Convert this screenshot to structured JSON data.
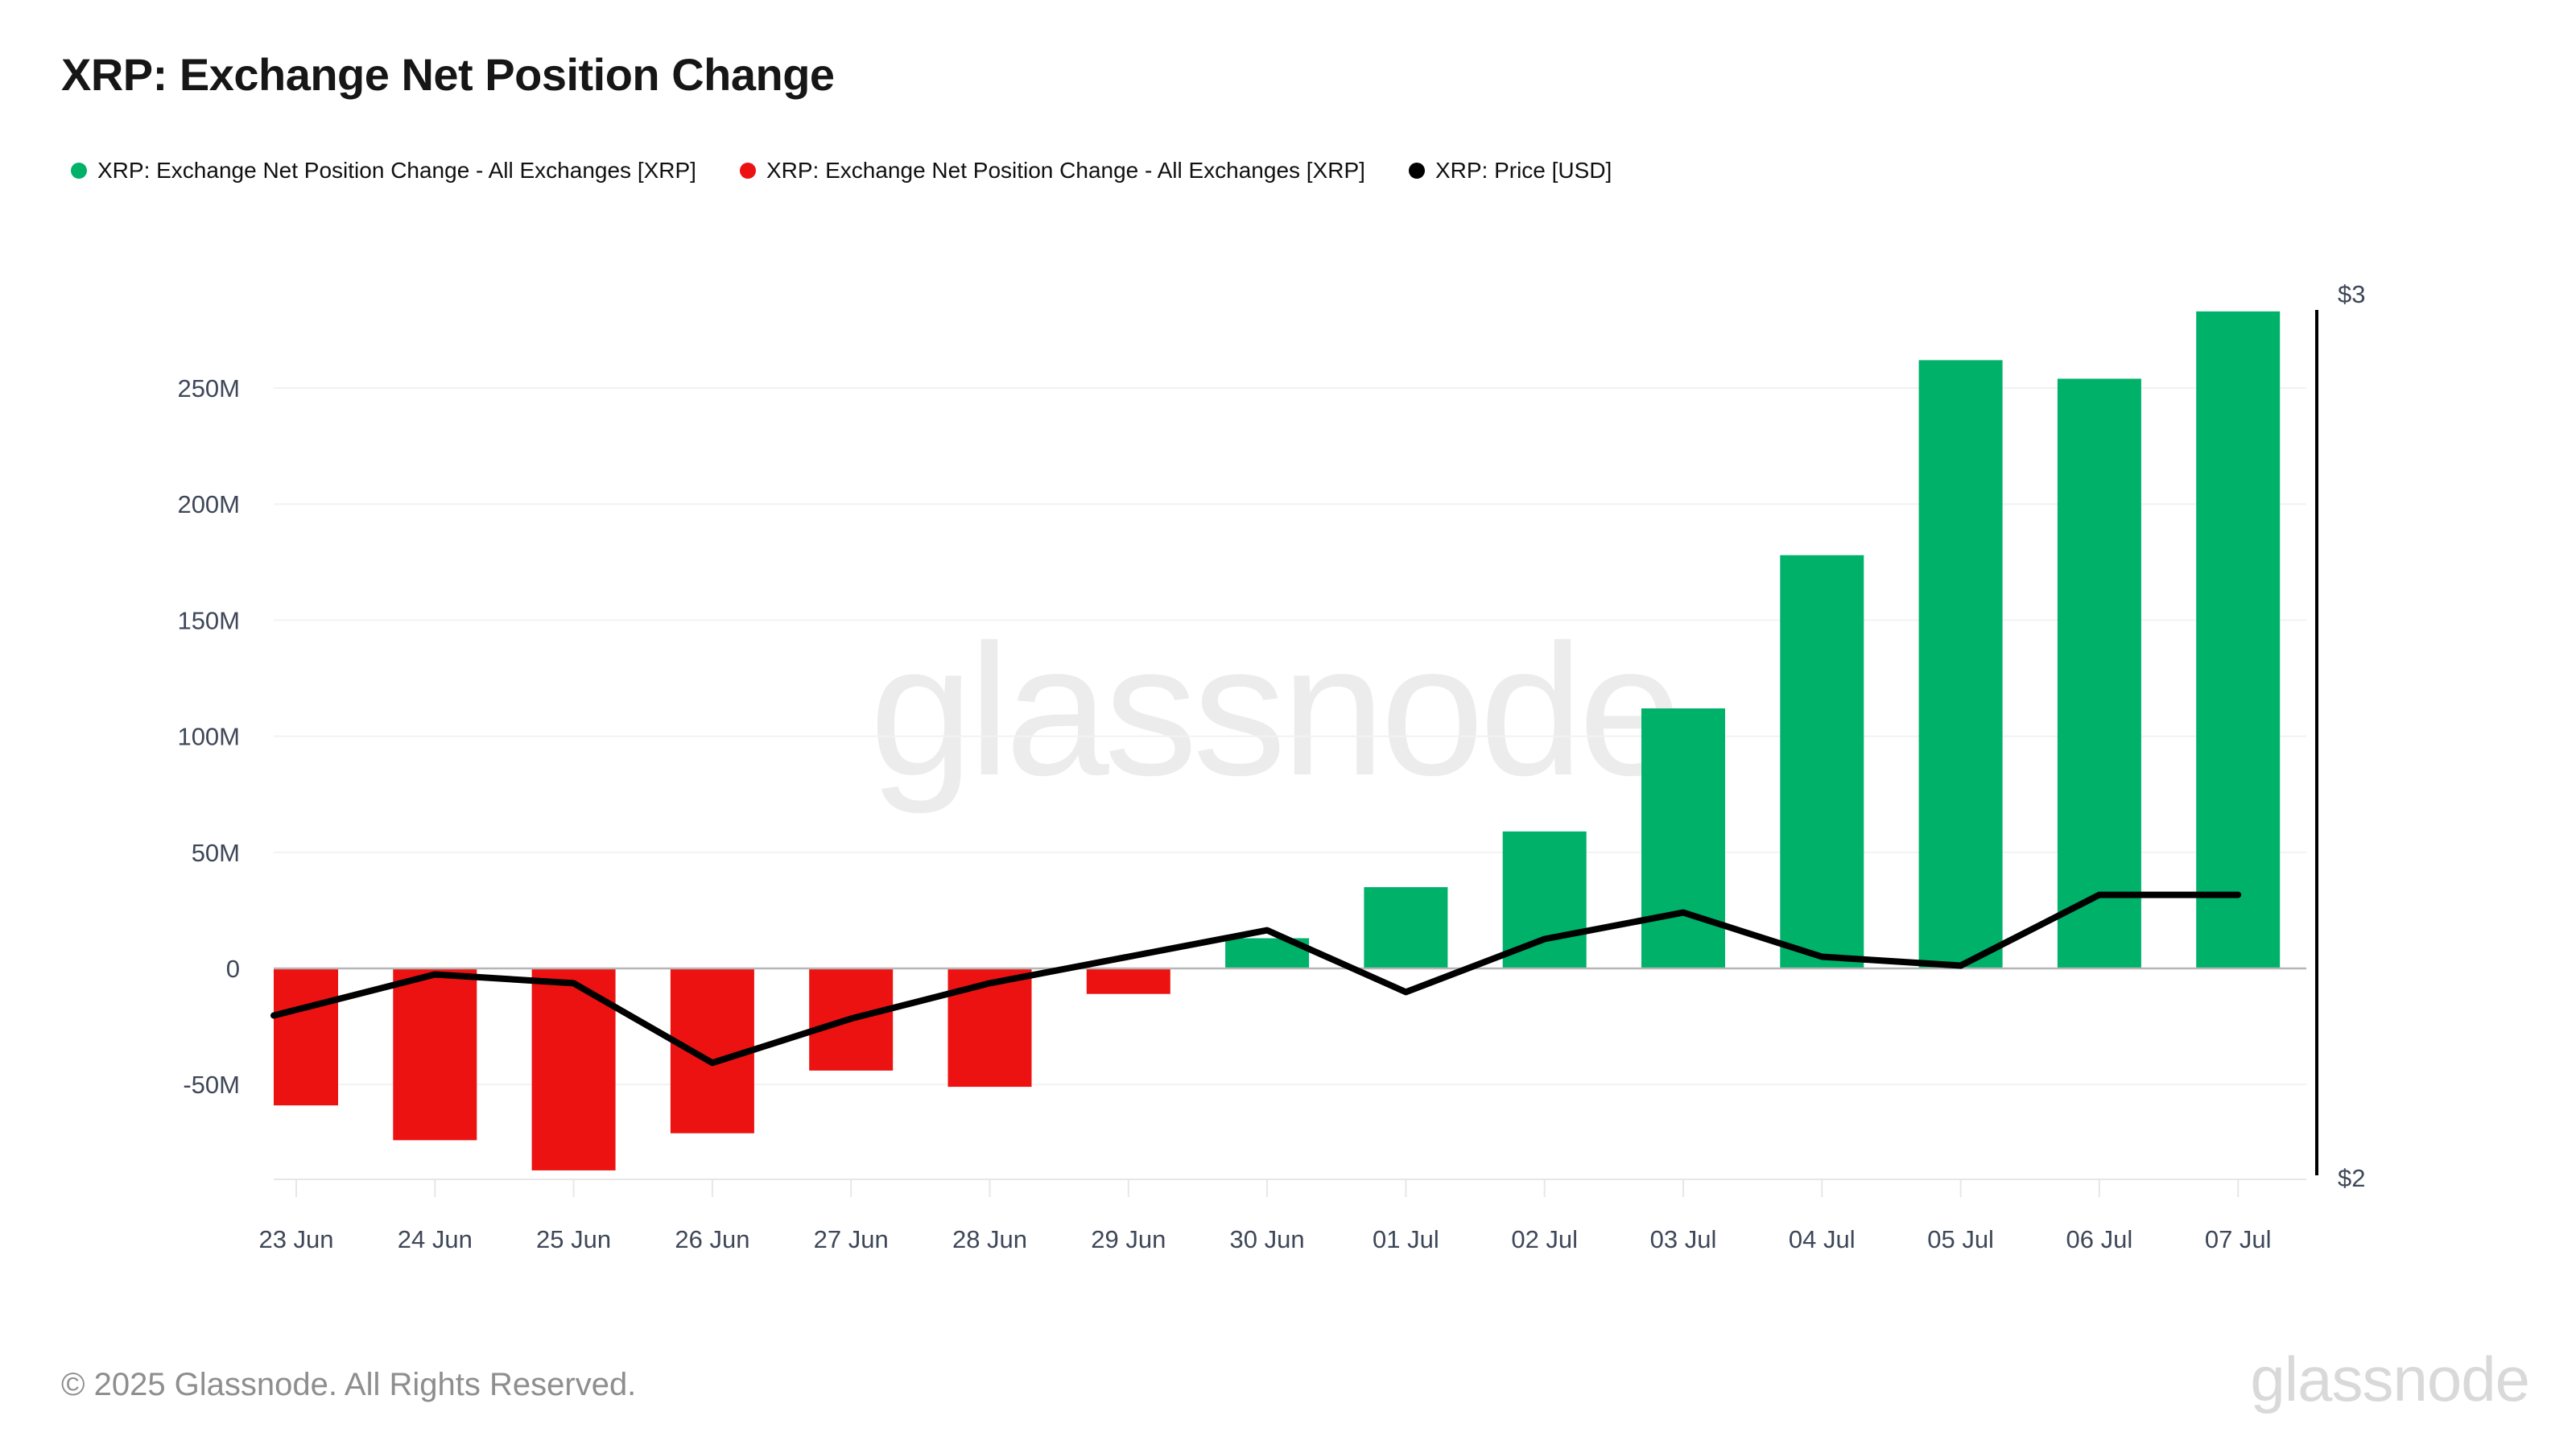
{
  "header": {
    "title": "XRP: Exchange Net Position Change"
  },
  "legend": [
    {
      "label": "XRP: Exchange Net Position Change - All Exchanges [XRP]",
      "color": "#00b16a"
    },
    {
      "label": "XRP: Exchange Net Position Change - All Exchanges [XRP]",
      "color": "#ed1212"
    },
    {
      "label": "XRP: Price [USD]",
      "color": "#000000"
    }
  ],
  "chart_data": {
    "type": "bar",
    "title": "XRP: Exchange Net Position Change",
    "categories": [
      "23 Jun",
      "24 Jun",
      "25 Jun",
      "26 Jun",
      "27 Jun",
      "28 Jun",
      "29 Jun",
      "30 Jun",
      "01 Jul",
      "02 Jul",
      "03 Jul",
      "04 Jul",
      "05 Jul",
      "06 Jul",
      "07 Jul"
    ],
    "series": [
      {
        "name": "XRP: Exchange Net Position Change - All Exchanges [XRP]",
        "type": "bar",
        "axis": "left",
        "unit": "XRP",
        "values_millions": [
          -59,
          -74,
          -87,
          -71,
          -44,
          -51,
          -11,
          13,
          35,
          59,
          112,
          178,
          262,
          254,
          283
        ],
        "positive_color": "#00b16a",
        "negative_color": "#ed1212"
      },
      {
        "name": "XRP: Price [USD]",
        "type": "line",
        "axis": "right",
        "unit": "USD",
        "values": [
          2.19,
          2.23,
          2.22,
          2.13,
          2.18,
          2.22,
          2.25,
          2.28,
          2.21,
          2.27,
          2.3,
          2.25,
          2.24,
          2.32,
          2.32
        ],
        "color": "#000000"
      }
    ],
    "left_axis": {
      "tick_labels": [
        "250M",
        "200M",
        "150M",
        "100M",
        "50M",
        "0",
        "-50M"
      ],
      "tick_values_millions": [
        250,
        200,
        150,
        100,
        50,
        0,
        -50
      ],
      "range_millions": [
        -95,
        285
      ]
    },
    "right_axis": {
      "tick_labels": [
        "$3",
        "$2"
      ],
      "min": 2,
      "max": 3
    },
    "grid": true,
    "legend_position": "top"
  },
  "watermark": {
    "text": "glassnode"
  },
  "footer": {
    "copyright": "© 2025 Glassnode. All Rights Reserved.",
    "logo": "glassnode"
  }
}
